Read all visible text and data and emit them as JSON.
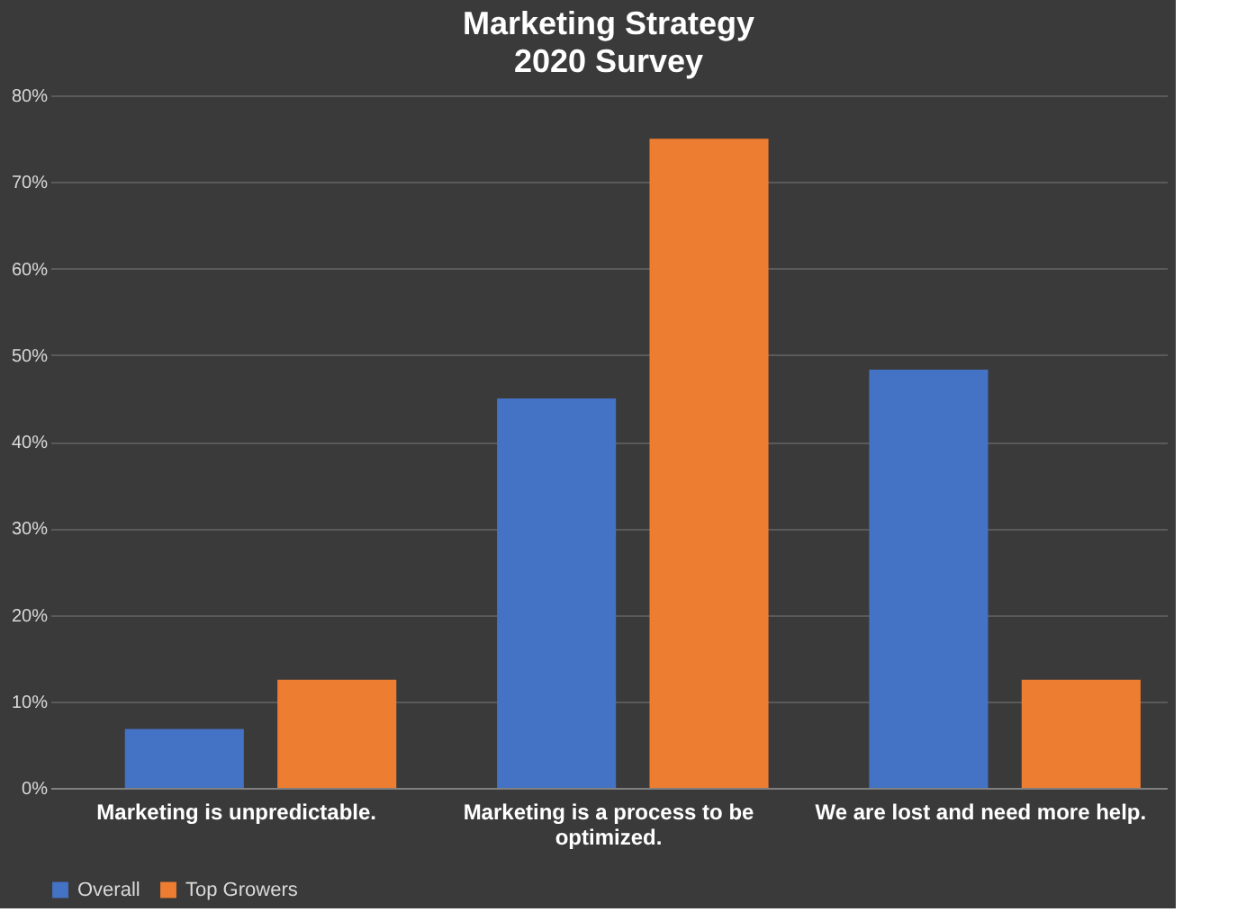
{
  "chart_data": {
    "type": "bar",
    "title": "Marketing Strategy",
    "subtitle": "2020 Survey",
    "categories": [
      "Marketing is unpredictable.",
      "Marketing is a process to be optimized.",
      "We are lost and need more help."
    ],
    "series": [
      {
        "name": "Overall",
        "color": "#4472c4",
        "values": [
          6.8,
          45,
          48.3
        ]
      },
      {
        "name": "Top Growers",
        "color": "#ed7d31",
        "values": [
          12.5,
          75,
          12.5
        ]
      }
    ],
    "ylim": [
      0,
      80
    ],
    "yticks": [
      {
        "value": 0,
        "label": "0%"
      },
      {
        "value": 10,
        "label": "10%"
      },
      {
        "value": 20,
        "label": "20%"
      },
      {
        "value": 30,
        "label": "30%"
      },
      {
        "value": 40,
        "label": "40%"
      },
      {
        "value": 50,
        "label": "50%"
      },
      {
        "value": 60,
        "label": "60%"
      },
      {
        "value": 70,
        "label": "70%"
      },
      {
        "value": 80,
        "label": "80%"
      }
    ],
    "grid": "y",
    "legend": "bottom"
  }
}
